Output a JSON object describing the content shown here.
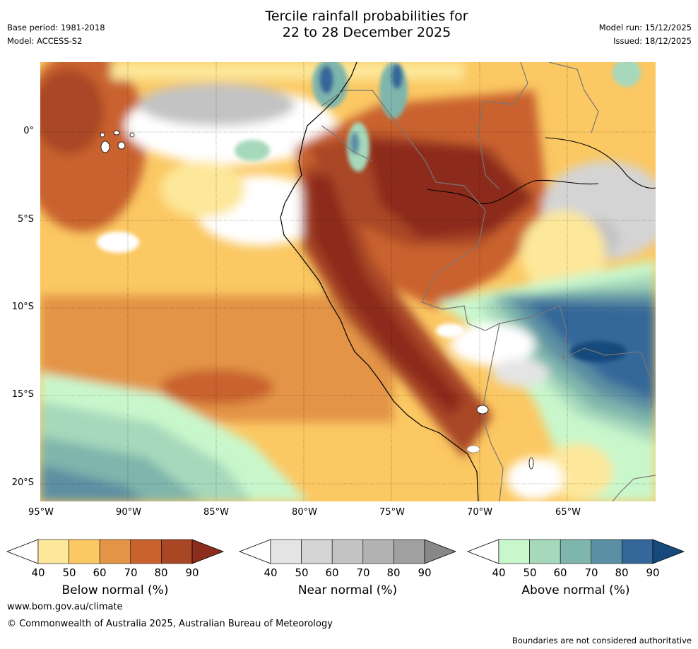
{
  "header": {
    "base_period": "Base period: 1981-2018",
    "model": "Model: ACCESS-S2",
    "title_line1": "Tercile rainfall probabilities for",
    "title_line2": "22 to 28 December 2025",
    "model_run": "Model run: 15/12/2025",
    "issued": "Issued: 18/12/2025"
  },
  "map": {
    "lat_labels": [
      "0°",
      "5°S",
      "10°S",
      "15°S",
      "20°S"
    ],
    "lon_labels": [
      "95°W",
      "90°W",
      "85°W",
      "80°W",
      "75°W",
      "70°W",
      "65°W"
    ]
  },
  "legends": [
    {
      "title": "Below normal (%)",
      "ticks": [
        "40",
        "50",
        "60",
        "70",
        "80",
        "90"
      ],
      "colors": [
        "#ffffff",
        "#fde79a",
        "#fbc863",
        "#e39447",
        "#c9622f",
        "#a94725",
        "#8c2c1c"
      ]
    },
    {
      "title": "Near normal (%)",
      "ticks": [
        "40",
        "50",
        "60",
        "70",
        "80",
        "90"
      ],
      "colors": [
        "#ffffff",
        "#e4e4e4",
        "#d4d4d4",
        "#c3c3c3",
        "#b2b2b2",
        "#a0a0a0",
        "#888888"
      ]
    },
    {
      "title": "Above normal (%)",
      "ticks": [
        "40",
        "50",
        "60",
        "70",
        "80",
        "90"
      ],
      "colors": [
        "#ffffff",
        "#c9f7cc",
        "#a6d8bb",
        "#7eb5ac",
        "#5b8fa3",
        "#35679a",
        "#174a7c"
      ]
    }
  ],
  "footer": {
    "website": "www.bom.gov.au/climate",
    "copyright": "© Commonwealth of Australia 2025, Australian Bureau of Meteorology",
    "disclaimer": "Boundaries are not considered authoritative"
  }
}
